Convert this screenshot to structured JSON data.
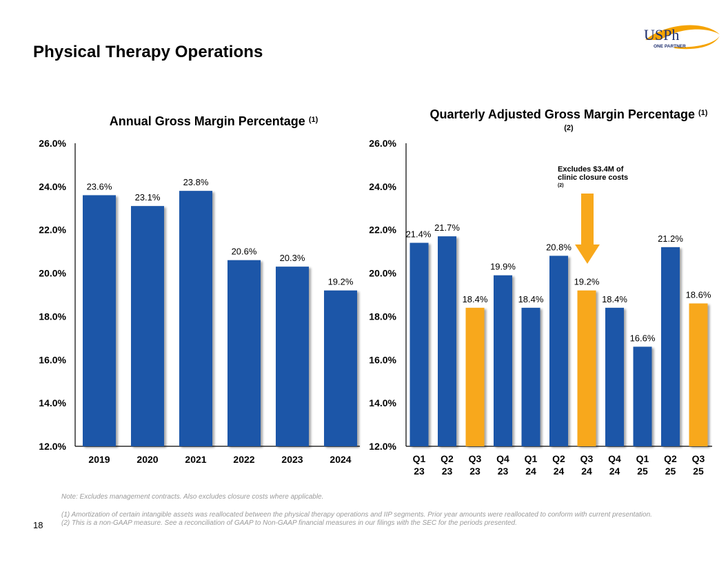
{
  "page": {
    "title": "Physical Therapy Operations",
    "page_number": "18",
    "logo": {
      "text": "USPh",
      "subtext": "ONE PARTNER",
      "accent": "#F5A300",
      "text_color": "#1F2F6E"
    }
  },
  "colors": {
    "blue": "#1B57A8",
    "gold": "#F8A81B",
    "axis": "#000000",
    "notes": "#9A9A9A"
  },
  "annotation": {
    "text": "Excludes $3.4M of clinic closure costs",
    "footnote": "(2)",
    "points_to": "Q3 24"
  },
  "notes": {
    "note": "Note: Excludes management contracts. Also excludes closure costs where applicable.",
    "footnote1": "(1) Amortization of certain intangible assets was reallocated between the physical therapy operations and IIP segments. Prior year amounts were reallocated to conform with current presentation.",
    "footnote2": "(2) This is a non-GAAP measure. See a reconciliation of GAAP to Non-GAAP financial measures in our  filings with the SEC for the periods presented."
  },
  "chart_data": [
    {
      "type": "bar",
      "title": "Annual Gross Margin Percentage",
      "title_sup": "(1)",
      "xlabel": "",
      "ylabel": "",
      "ylim": [
        12.0,
        26.0
      ],
      "yticks": [
        "12.0%",
        "14.0%",
        "16.0%",
        "18.0%",
        "20.0%",
        "22.0%",
        "24.0%",
        "26.0%"
      ],
      "grid": false,
      "categories": [
        "2019",
        "2020",
        "2021",
        "2022",
        "2023",
        "2024"
      ],
      "values": [
        23.6,
        23.1,
        23.8,
        20.6,
        20.3,
        19.2
      ],
      "labels": [
        "23.6%",
        "23.1%",
        "23.8%",
        "20.6%",
        "20.3%",
        "19.2%"
      ],
      "highlight": [
        false,
        false,
        false,
        false,
        false,
        false
      ]
    },
    {
      "type": "bar",
      "title": "Quarterly Adjusted Gross Margin Percentage",
      "title_sup": "(1)(2)",
      "xlabel": "",
      "ylabel": "",
      "ylim": [
        12.0,
        26.0
      ],
      "yticks": [
        "12.0%",
        "14.0%",
        "16.0%",
        "18.0%",
        "20.0%",
        "22.0%",
        "24.0%",
        "26.0%"
      ],
      "grid": false,
      "categories": [
        [
          "Q1",
          "23"
        ],
        [
          "Q2",
          "23"
        ],
        [
          "Q3",
          "23"
        ],
        [
          "Q4",
          "23"
        ],
        [
          "Q1",
          "24"
        ],
        [
          "Q2",
          "24"
        ],
        [
          "Q3",
          "24"
        ],
        [
          "Q4",
          "24"
        ],
        [
          "Q1",
          "25"
        ],
        [
          "Q2",
          "25"
        ],
        [
          "Q3",
          "25"
        ]
      ],
      "values": [
        21.4,
        21.7,
        18.4,
        19.9,
        18.4,
        20.8,
        19.2,
        18.4,
        16.6,
        21.2,
        18.6
      ],
      "labels": [
        "21.4%",
        "21.7%",
        "18.4%",
        "19.9%",
        "18.4%",
        "20.8%",
        "19.2%",
        "18.4%",
        "16.6%",
        "21.2%",
        "18.6%"
      ],
      "highlight": [
        false,
        false,
        true,
        false,
        false,
        false,
        true,
        false,
        false,
        false,
        true
      ]
    }
  ]
}
